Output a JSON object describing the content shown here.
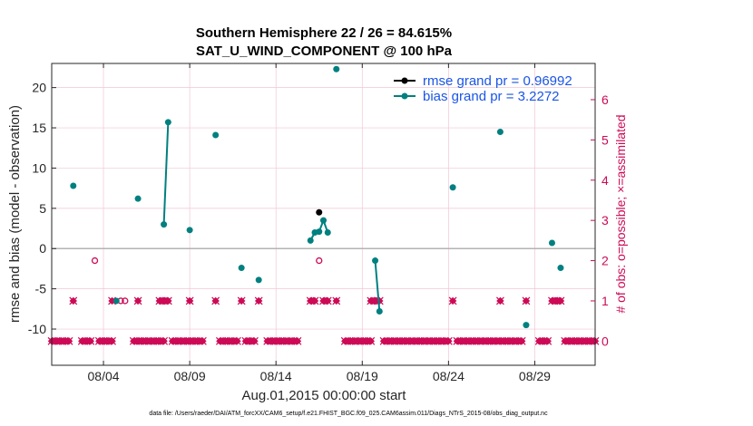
{
  "chart_data": {
    "type": "scatter",
    "title": "Southern Hemisphere 22 / 26 = 84.615%",
    "subtitle": "SAT_U_WIND_COMPONENT @ 100 hPa",
    "xlabel": "Aug.01,2015 00:00:00 start",
    "ylabel": "rmse and bias (model - observation)",
    "ylabel_right": "# of obs: o=possible; ×=assimilated",
    "footnote": "data file: /Users/raeder/DAI/ATM_forcXX/CAM6_setup/f.e21.FHIST_BGC.f09_025.CAM6assim.011/Diags_NTrS_2015-08/obs_diag_output.nc",
    "xlim": [
      0,
      31.5
    ],
    "ylim": [
      -14.5,
      23
    ],
    "ylim_right": [
      -0.6,
      6.9
    ],
    "x_ticks": [
      {
        "value": 3,
        "label": "08/04"
      },
      {
        "value": 8,
        "label": "08/09"
      },
      {
        "value": 13,
        "label": "08/14"
      },
      {
        "value": 18,
        "label": "08/19"
      },
      {
        "value": 23,
        "label": "08/24"
      },
      {
        "value": 28,
        "label": "08/29"
      }
    ],
    "y_ticks": [
      {
        "value": -10,
        "label": "-10"
      },
      {
        "value": -5,
        "label": "-5"
      },
      {
        "value": 0,
        "label": "0"
      },
      {
        "value": 5,
        "label": "5"
      },
      {
        "value": 10,
        "label": "10"
      },
      {
        "value": 15,
        "label": "15"
      },
      {
        "value": 20,
        "label": "20"
      }
    ],
    "y_ticks_right": [
      {
        "value": 0,
        "label": "0"
      },
      {
        "value": 1,
        "label": "1"
      },
      {
        "value": 2,
        "label": "2"
      },
      {
        "value": 3,
        "label": "3"
      },
      {
        "value": 4,
        "label": "4"
      },
      {
        "value": 5,
        "label": "5"
      },
      {
        "value": 6,
        "label": "6"
      }
    ],
    "legend": {
      "position": "top-right",
      "entries": [
        "rmse grand pr = 0.96992",
        "bias grand pr = 3.2272"
      ]
    },
    "colors": {
      "rmse": "#000000",
      "bias": "#008080",
      "obs": "#cc0a55",
      "zero_line": "#b3b3b3",
      "grid": "#f2c6d6",
      "legend_text": "#1a55e6"
    },
    "series": [
      {
        "name": "rmse",
        "points": [
          [
            15.5,
            4.5
          ]
        ]
      },
      {
        "name": "bias",
        "segments": [
          [
            [
              1.25,
              7.8
            ]
          ],
          [
            [
              3.75,
              -6.5
            ]
          ],
          [
            [
              5.0,
              6.2
            ]
          ],
          [
            [
              6.5,
              3.0
            ],
            [
              6.75,
              15.7
            ]
          ],
          [
            [
              8.0,
              2.3
            ]
          ],
          [
            [
              9.5,
              14.1
            ]
          ],
          [
            [
              11.0,
              -2.4
            ]
          ],
          [
            [
              12.0,
              -3.9
            ]
          ],
          [
            [
              15.0,
              1.0
            ],
            [
              15.25,
              2.0
            ],
            [
              15.5,
              2.1
            ],
            [
              15.75,
              3.5
            ],
            [
              16.0,
              2.0
            ]
          ],
          [
            [
              16.5,
              22.3
            ]
          ],
          [
            [
              18.75,
              -1.5
            ],
            [
              19.0,
              -7.8
            ]
          ],
          [
            [
              23.25,
              7.6
            ]
          ],
          [
            [
              26.0,
              14.5
            ]
          ],
          [
            [
              27.5,
              -9.5
            ]
          ],
          [
            [
              29.0,
              0.7
            ]
          ],
          [
            [
              29.5,
              -2.4
            ]
          ]
        ]
      },
      {
        "name": "obs_possible",
        "points": [
          [
            2.5,
            2
          ],
          [
            4.0,
            1
          ],
          [
            4.25,
            1
          ],
          [
            15.5,
            2
          ]
        ]
      },
      {
        "name": "obs_assimilated_one",
        "x": [
          1.25,
          3.5,
          5.0,
          6.25,
          6.5,
          6.75,
          8.0,
          9.5,
          11.0,
          12.0,
          15.0,
          15.25,
          15.75,
          16.0,
          16.5,
          18.5,
          18.75,
          19.0,
          23.25,
          26.0,
          27.5,
          29.0,
          29.25,
          29.5
        ]
      },
      {
        "name": "obs_assimilated_zero",
        "x_start": 0.0,
        "x_end": 31.5,
        "step": 0.25,
        "gaps": [
          [
            1.25,
            1.5
          ],
          [
            2.5,
            2.5
          ],
          [
            3.75,
            4.5
          ],
          [
            6.75,
            6.75
          ],
          [
            9.0,
            9.5
          ],
          [
            11.0,
            11.0
          ],
          [
            12.0,
            12.25
          ],
          [
            14.5,
            16.75
          ],
          [
            18.75,
            19.0
          ],
          [
            23.25,
            23.25
          ],
          [
            27.5,
            28.0
          ],
          [
            29.0,
            29.5
          ]
        ]
      }
    ]
  }
}
